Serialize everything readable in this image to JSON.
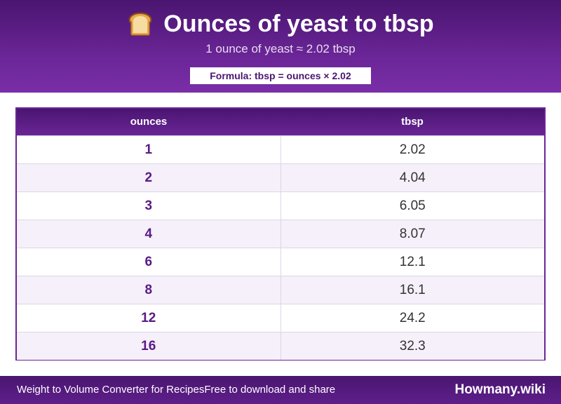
{
  "header": {
    "icon": "bread-icon",
    "title": "Ounces of yeast to tbsp",
    "subtitle": "1 ounce of yeast ≈ 2.02 tbsp",
    "formula": "Formula: tbsp = ounces × 2.02"
  },
  "table": {
    "columns": [
      "ounces",
      "tbsp"
    ],
    "rows": [
      {
        "ounces": "1",
        "tbsp": "2.02"
      },
      {
        "ounces": "2",
        "tbsp": "4.04"
      },
      {
        "ounces": "3",
        "tbsp": "6.05"
      },
      {
        "ounces": "4",
        "tbsp": "8.07"
      },
      {
        "ounces": "6",
        "tbsp": "12.1"
      },
      {
        "ounces": "8",
        "tbsp": "16.1"
      },
      {
        "ounces": "12",
        "tbsp": "24.2"
      },
      {
        "ounces": "16",
        "tbsp": "32.3"
      }
    ]
  },
  "footer": {
    "left_text": "Weight to Volume Converter for Recipes",
    "mid_text": "Free to download and share",
    "brand": "Howmany.wiki"
  },
  "colors": {
    "primary": "#6a2596",
    "dark": "#4a1570",
    "row_alt": "#f5f0fa"
  }
}
